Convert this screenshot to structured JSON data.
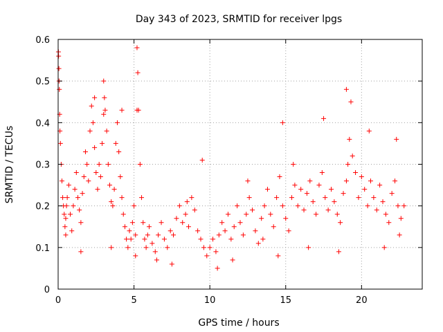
{
  "chart_data": {
    "type": "scatter",
    "title": "Day 343 of 2023, SRMTID for receiver lpgs",
    "xlabel": "GPS time / hours",
    "ylabel": "SRMTID / TECUs",
    "xlim": [
      0,
      24
    ],
    "ylim": [
      0,
      0.6
    ],
    "x_ticks": [
      0,
      5,
      10,
      15,
      20
    ],
    "x_tick_labels": [
      "0",
      "5",
      "10",
      "15",
      "20"
    ],
    "y_ticks": [
      0,
      0.1,
      0.2,
      0.3,
      0.4,
      0.5,
      0.6
    ],
    "y_tick_labels": [
      "0",
      "0.1",
      "0.2",
      "0.3",
      "0.4",
      "0.5",
      "0.6"
    ],
    "grid": true,
    "marker": "+",
    "color": "#ff0000",
    "series": [
      {
        "name": "SRMTID",
        "x": [
          0.02,
          0.05,
          0.08,
          0.1,
          0.12,
          0.15,
          0.2,
          0.25,
          0.3,
          0.35,
          0.4,
          0.45,
          0.5,
          0.55,
          0.6,
          0.7,
          0.8,
          0.9,
          1.0,
          1.1,
          1.2,
          1.3,
          1.4,
          1.5,
          1.6,
          1.7,
          1.8,
          1.9,
          2.0,
          2.1,
          2.2,
          2.3,
          2.4,
          2.5,
          2.6,
          2.7,
          2.8,
          2.9,
          3.0,
          3.05,
          3.1,
          3.2,
          3.3,
          3.4,
          3.5,
          3.6,
          3.7,
          3.8,
          3.9,
          4.0,
          4.1,
          4.2,
          4.3,
          4.4,
          4.5,
          4.6,
          4.7,
          4.8,
          4.9,
          5.0,
          5.1,
          5.2,
          5.25,
          5.3,
          5.4,
          5.5,
          5.6,
          5.7,
          5.8,
          5.9,
          6.0,
          6.2,
          6.4,
          6.6,
          6.8,
          7.0,
          7.2,
          7.4,
          7.6,
          7.8,
          8.0,
          8.2,
          8.4,
          8.6,
          8.8,
          9.0,
          9.2,
          9.4,
          9.6,
          9.8,
          10.0,
          10.2,
          10.4,
          10.6,
          10.8,
          11.0,
          11.2,
          11.4,
          11.6,
          11.8,
          12.0,
          12.2,
          12.4,
          12.6,
          12.8,
          13.0,
          13.2,
          13.4,
          13.6,
          13.8,
          14.0,
          14.2,
          14.4,
          14.6,
          14.8,
          15.0,
          15.2,
          15.4,
          15.6,
          15.8,
          16.0,
          16.2,
          16.4,
          16.6,
          16.8,
          17.0,
          17.2,
          17.4,
          17.6,
          17.8,
          18.0,
          18.2,
          18.4,
          18.6,
          18.8,
          19.0,
          19.1,
          19.2,
          19.4,
          19.6,
          19.8,
          20.0,
          20.2,
          20.4,
          20.6,
          20.8,
          21.0,
          21.2,
          21.4,
          21.6,
          21.8,
          22.0,
          22.2,
          22.4,
          22.6,
          22.8,
          0.03,
          0.06,
          0.5,
          1.5,
          2.4,
          3.0,
          3.5,
          4.2,
          5.1,
          5.2,
          6.5,
          7.5,
          8.5,
          9.5,
          10.5,
          11.5,
          12.5,
          13.5,
          14.5,
          14.8,
          15.5,
          16.5,
          17.5,
          18.5,
          19.0,
          19.3,
          20.5,
          21.5,
          22.3,
          22.5
        ],
        "y": [
          0.57,
          0.53,
          0.48,
          0.42,
          0.38,
          0.35,
          0.3,
          0.26,
          0.22,
          0.2,
          0.18,
          0.15,
          0.17,
          0.2,
          0.22,
          0.25,
          0.18,
          0.14,
          0.2,
          0.24,
          0.28,
          0.22,
          0.19,
          0.16,
          0.23,
          0.27,
          0.33,
          0.3,
          0.26,
          0.38,
          0.44,
          0.4,
          0.34,
          0.28,
          0.24,
          0.3,
          0.27,
          0.35,
          0.5,
          0.46,
          0.43,
          0.38,
          0.3,
          0.25,
          0.21,
          0.2,
          0.24,
          0.35,
          0.4,
          0.33,
          0.27,
          0.22,
          0.18,
          0.15,
          0.12,
          0.1,
          0.14,
          0.12,
          0.16,
          0.2,
          0.13,
          0.58,
          0.52,
          0.43,
          0.3,
          0.22,
          0.16,
          0.12,
          0.1,
          0.13,
          0.15,
          0.11,
          0.09,
          0.13,
          0.16,
          0.12,
          0.1,
          0.14,
          0.13,
          0.17,
          0.2,
          0.16,
          0.18,
          0.15,
          0.22,
          0.19,
          0.14,
          0.12,
          0.1,
          0.08,
          0.1,
          0.12,
          0.09,
          0.13,
          0.16,
          0.14,
          0.18,
          0.12,
          0.15,
          0.2,
          0.16,
          0.13,
          0.18,
          0.22,
          0.19,
          0.14,
          0.11,
          0.17,
          0.2,
          0.24,
          0.18,
          0.15,
          0.22,
          0.27,
          0.2,
          0.17,
          0.14,
          0.22,
          0.25,
          0.2,
          0.24,
          0.19,
          0.23,
          0.26,
          0.21,
          0.18,
          0.25,
          0.28,
          0.22,
          0.19,
          0.24,
          0.21,
          0.18,
          0.16,
          0.23,
          0.26,
          0.3,
          0.36,
          0.32,
          0.28,
          0.22,
          0.27,
          0.24,
          0.2,
          0.26,
          0.22,
          0.19,
          0.25,
          0.21,
          0.18,
          0.16,
          0.23,
          0.26,
          0.2,
          0.17,
          0.2,
          0.56,
          0.5,
          0.13,
          0.09,
          0.46,
          0.42,
          0.1,
          0.43,
          0.08,
          0.43,
          0.07,
          0.06,
          0.21,
          0.31,
          0.05,
          0.07,
          0.26,
          0.12,
          0.08,
          0.4,
          0.3,
          0.1,
          0.41,
          0.09,
          0.48,
          0.45,
          0.38,
          0.1,
          0.36,
          0.13
        ]
      }
    ]
  }
}
